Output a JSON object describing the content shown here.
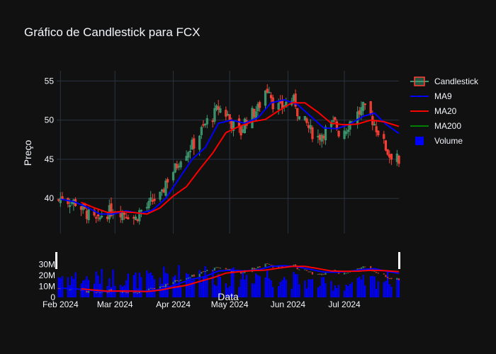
{
  "chart_data": {
    "type": "candlestick",
    "title": "Gráfico de Candlestick para FCX",
    "xlabel": "Data",
    "ylabel": "Preço",
    "x_range": [
      "2024-01-30",
      "2024-07-30"
    ],
    "x_ticks": [
      {
        "date": "2024-02-01",
        "label": "Feb 2024"
      },
      {
        "date": "2024-03-01",
        "label": "Mar 2024"
      },
      {
        "date": "2024-04-01",
        "label": "Apr 2024"
      },
      {
        "date": "2024-05-01",
        "label": "May 2024"
      },
      {
        "date": "2024-06-01",
        "label": "Jun 2024"
      },
      {
        "date": "2024-07-01",
        "label": "Jul 2024"
      }
    ],
    "price_axis": {
      "ylim": [
        35.5,
        56.3
      ],
      "ticks": [
        40,
        45,
        50,
        55
      ]
    },
    "volume_axis": {
      "ylim": [
        0,
        40000000
      ],
      "ticks": [
        {
          "v": 0,
          "label": "0"
        },
        {
          "v": 10000000,
          "label": "10M"
        },
        {
          "v": 20000000,
          "label": "20M"
        },
        {
          "v": 30000000,
          "label": "30M"
        }
      ]
    },
    "grid": true,
    "legend": {
      "placement": "top-right",
      "entries": [
        {
          "name": "Candlestick",
          "kind": "candle"
        },
        {
          "name": "MA9",
          "kind": "line",
          "color": "#0000ff"
        },
        {
          "name": "MA20",
          "kind": "line",
          "color": "#ff0000"
        },
        {
          "name": "MA200",
          "kind": "line",
          "color": "#008000"
        },
        {
          "name": "Volume",
          "kind": "square",
          "color": "#0000ff"
        }
      ]
    },
    "colors": {
      "up": "#3d9970",
      "down": "#ff4136",
      "up_fill": "rgba(61,153,112,0.5)",
      "down_fill": "rgba(255,65,54,0.5)",
      "ma9": "#0000ff",
      "ma20": "#ff0000",
      "ma200": "#008000",
      "volume": "#0000ff"
    },
    "close_path": [
      [
        "2024-01-31",
        39.8
      ],
      [
        "2024-02-02",
        40.2
      ],
      [
        "2024-02-06",
        39.6
      ],
      [
        "2024-02-09",
        39.5
      ],
      [
        "2024-02-13",
        38.6
      ],
      [
        "2024-02-16",
        37.8
      ],
      [
        "2024-02-21",
        37.0
      ],
      [
        "2024-02-23",
        37.9
      ],
      [
        "2024-02-28",
        38.4
      ],
      [
        "2024-03-01",
        38.7
      ],
      [
        "2024-03-06",
        38.2
      ],
      [
        "2024-03-08",
        38.0
      ],
      [
        "2024-03-12",
        37.4
      ],
      [
        "2024-03-14",
        38.3
      ],
      [
        "2024-03-19",
        39.0
      ],
      [
        "2024-03-21",
        39.8
      ],
      [
        "2024-03-26",
        40.3
      ],
      [
        "2024-03-28",
        42.2
      ],
      [
        "2024-04-02",
        43.8
      ],
      [
        "2024-04-05",
        45.3
      ],
      [
        "2024-04-09",
        46.2
      ],
      [
        "2024-04-12",
        47.0
      ],
      [
        "2024-04-16",
        48.6
      ],
      [
        "2024-04-19",
        49.8
      ],
      [
        "2024-04-23",
        50.8
      ],
      [
        "2024-04-25",
        51.6
      ],
      [
        "2024-04-30",
        50.6
      ],
      [
        "2024-05-02",
        49.6
      ],
      [
        "2024-05-07",
        48.4
      ],
      [
        "2024-05-09",
        49.8
      ],
      [
        "2024-05-13",
        50.8
      ],
      [
        "2024-05-16",
        51.4
      ],
      [
        "2024-05-20",
        53.8
      ],
      [
        "2024-05-22",
        54.2
      ],
      [
        "2024-05-24",
        52.2
      ],
      [
        "2024-05-28",
        51.5
      ],
      [
        "2024-05-30",
        52.0
      ],
      [
        "2024-06-03",
        52.6
      ],
      [
        "2024-06-05",
        52.2
      ],
      [
        "2024-06-07",
        50.2
      ],
      [
        "2024-06-11",
        49.5
      ],
      [
        "2024-06-13",
        48.6
      ],
      [
        "2024-06-17",
        47.8
      ],
      [
        "2024-06-20",
        48.5
      ],
      [
        "2024-06-24",
        49.2
      ],
      [
        "2024-06-26",
        49.6
      ],
      [
        "2024-06-28",
        48.5
      ],
      [
        "2024-07-02",
        49.0
      ],
      [
        "2024-07-05",
        50.2
      ],
      [
        "2024-07-09",
        51.0
      ],
      [
        "2024-07-11",
        51.5
      ],
      [
        "2024-07-15",
        50.5
      ],
      [
        "2024-07-17",
        49.5
      ],
      [
        "2024-07-19",
        48.6
      ],
      [
        "2024-07-23",
        46.5
      ],
      [
        "2024-07-25",
        45.5
      ],
      [
        "2024-07-29",
        45.8
      ],
      [
        "2024-07-30",
        43.8
      ]
    ],
    "ma9": [
      [
        "2024-02-01",
        39.9
      ],
      [
        "2024-02-08",
        39.6
      ],
      [
        "2024-02-15",
        38.9
      ],
      [
        "2024-02-22",
        38.0
      ],
      [
        "2024-02-29",
        38.0
      ],
      [
        "2024-03-07",
        38.4
      ],
      [
        "2024-03-14",
        38.1
      ],
      [
        "2024-03-21",
        38.5
      ],
      [
        "2024-03-28",
        40.0
      ],
      [
        "2024-04-04",
        42.5
      ],
      [
        "2024-04-11",
        45.0
      ],
      [
        "2024-04-18",
        46.5
      ],
      [
        "2024-04-25",
        49.6
      ],
      [
        "2024-05-02",
        50.0
      ],
      [
        "2024-05-09",
        49.6
      ],
      [
        "2024-05-16",
        50.3
      ],
      [
        "2024-05-23",
        52.2
      ],
      [
        "2024-05-30",
        52.6
      ],
      [
        "2024-06-06",
        52.0
      ],
      [
        "2024-06-13",
        50.5
      ],
      [
        "2024-06-20",
        49.0
      ],
      [
        "2024-06-27",
        48.9
      ],
      [
        "2024-07-04",
        49.5
      ],
      [
        "2024-07-11",
        50.5
      ],
      [
        "2024-07-17",
        50.9
      ],
      [
        "2024-07-23",
        49.5
      ],
      [
        "2024-07-30",
        48.3
      ]
    ],
    "ma20": [
      [
        "2024-02-12",
        39.5
      ],
      [
        "2024-02-19",
        38.8
      ],
      [
        "2024-02-26",
        38.2
      ],
      [
        "2024-03-04",
        38.3
      ],
      [
        "2024-03-11",
        38.2
      ],
      [
        "2024-03-18",
        38.0
      ],
      [
        "2024-03-25",
        38.8
      ],
      [
        "2024-04-01",
        40.3
      ],
      [
        "2024-04-08",
        41.5
      ],
      [
        "2024-04-15",
        43.7
      ],
      [
        "2024-04-22",
        45.8
      ],
      [
        "2024-04-29",
        48.4
      ],
      [
        "2024-05-06",
        49.2
      ],
      [
        "2024-05-13",
        49.8
      ],
      [
        "2024-05-20",
        50.1
      ],
      [
        "2024-05-27",
        51.2
      ],
      [
        "2024-06-03",
        52.2
      ],
      [
        "2024-06-10",
        52.2
      ],
      [
        "2024-06-17",
        51.0
      ],
      [
        "2024-06-24",
        49.6
      ],
      [
        "2024-07-01",
        49.4
      ],
      [
        "2024-07-08",
        49.5
      ],
      [
        "2024-07-15",
        50.0
      ],
      [
        "2024-07-22",
        49.8
      ],
      [
        "2024-07-30",
        49.2
      ]
    ],
    "volume_path": [
      [
        "2024-02-01",
        21000000
      ],
      [
        "2024-02-15",
        18000000
      ],
      [
        "2024-03-01",
        20000000
      ],
      [
        "2024-03-15",
        17000000
      ],
      [
        "2024-04-01",
        22000000
      ],
      [
        "2024-04-15",
        24000000
      ],
      [
        "2024-05-01",
        19000000
      ],
      [
        "2024-05-15",
        23000000
      ],
      [
        "2024-06-01",
        18000000
      ],
      [
        "2024-06-15",
        14000000
      ],
      [
        "2024-07-01",
        12000000
      ],
      [
        "2024-07-15",
        16000000
      ],
      [
        "2024-07-30",
        20000000
      ]
    ]
  }
}
